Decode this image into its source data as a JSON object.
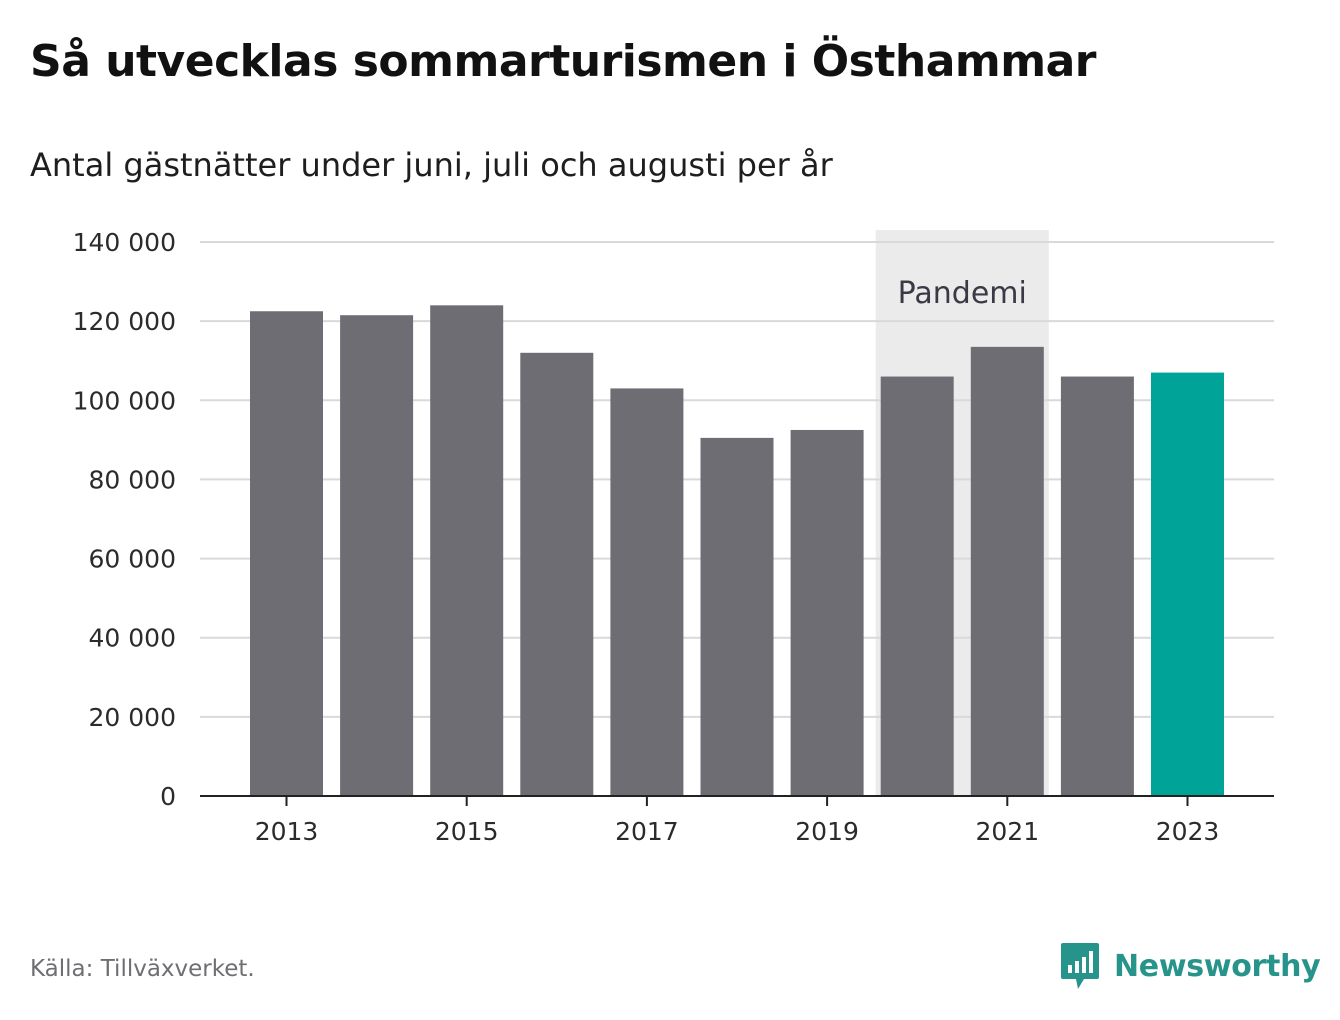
{
  "title": "Så utvecklas sommarturismen i Östhammar",
  "subtitle": "Antal gästnätter under juni, juli och augusti per år",
  "source": "Källa: Tillväxverket.",
  "brand": "Newsworthy",
  "colors": {
    "bar": "#6e6d73",
    "highlight": "#00a398",
    "gridline": "#d9d9d9",
    "band": "#ebebeb",
    "axis": "#222222",
    "brand": "#26948a"
  },
  "chart_data": {
    "type": "bar",
    "categories": [
      "2013",
      "2014",
      "2015",
      "2016",
      "2017",
      "2018",
      "2019",
      "2020",
      "2021",
      "2022",
      "2023"
    ],
    "values": [
      122500,
      121500,
      124000,
      112000,
      103000,
      90500,
      92500,
      106000,
      113500,
      106000,
      107000
    ],
    "highlight_category": "2023",
    "ylim": [
      0,
      140000
    ],
    "yticks": [
      0,
      20000,
      40000,
      60000,
      80000,
      100000,
      120000,
      140000
    ],
    "ytick_labels": [
      "0",
      "20 000",
      "40 000",
      "60 000",
      "80 000",
      "100 000",
      "120 000",
      "140 000"
    ],
    "xtick_labels": [
      "2013",
      "2015",
      "2017",
      "2019",
      "2021",
      "2023"
    ],
    "xlabel": "",
    "ylabel": "",
    "grid": true,
    "annotation_band": {
      "label": "Pandemi",
      "from": "2020",
      "to": "2021"
    }
  }
}
